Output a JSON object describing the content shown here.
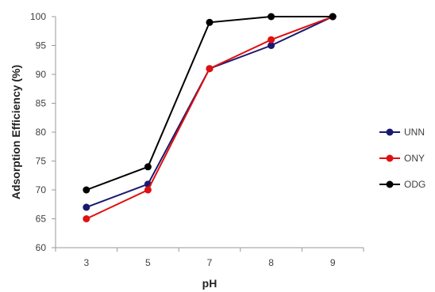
{
  "chart_data": {
    "type": "line",
    "title": "",
    "xlabel": "pH",
    "ylabel": "Adsorption Efficiency (%)",
    "categories": [
      "3",
      "5",
      "7",
      "8",
      "9"
    ],
    "ylim": [
      60,
      100
    ],
    "yticks": [
      60,
      65,
      70,
      75,
      80,
      85,
      90,
      95,
      100
    ],
    "grid": false,
    "legend_position": "right",
    "series": [
      {
        "name": "UNN",
        "color": "#1a1a6e",
        "values": [
          67,
          71,
          91,
          95,
          100
        ]
      },
      {
        "name": "ONY",
        "color": "#e01010",
        "values": [
          65,
          70,
          91,
          96,
          100
        ]
      },
      {
        "name": "ODG",
        "color": "#000000",
        "values": [
          70,
          74,
          99,
          100,
          100
        ]
      }
    ]
  }
}
